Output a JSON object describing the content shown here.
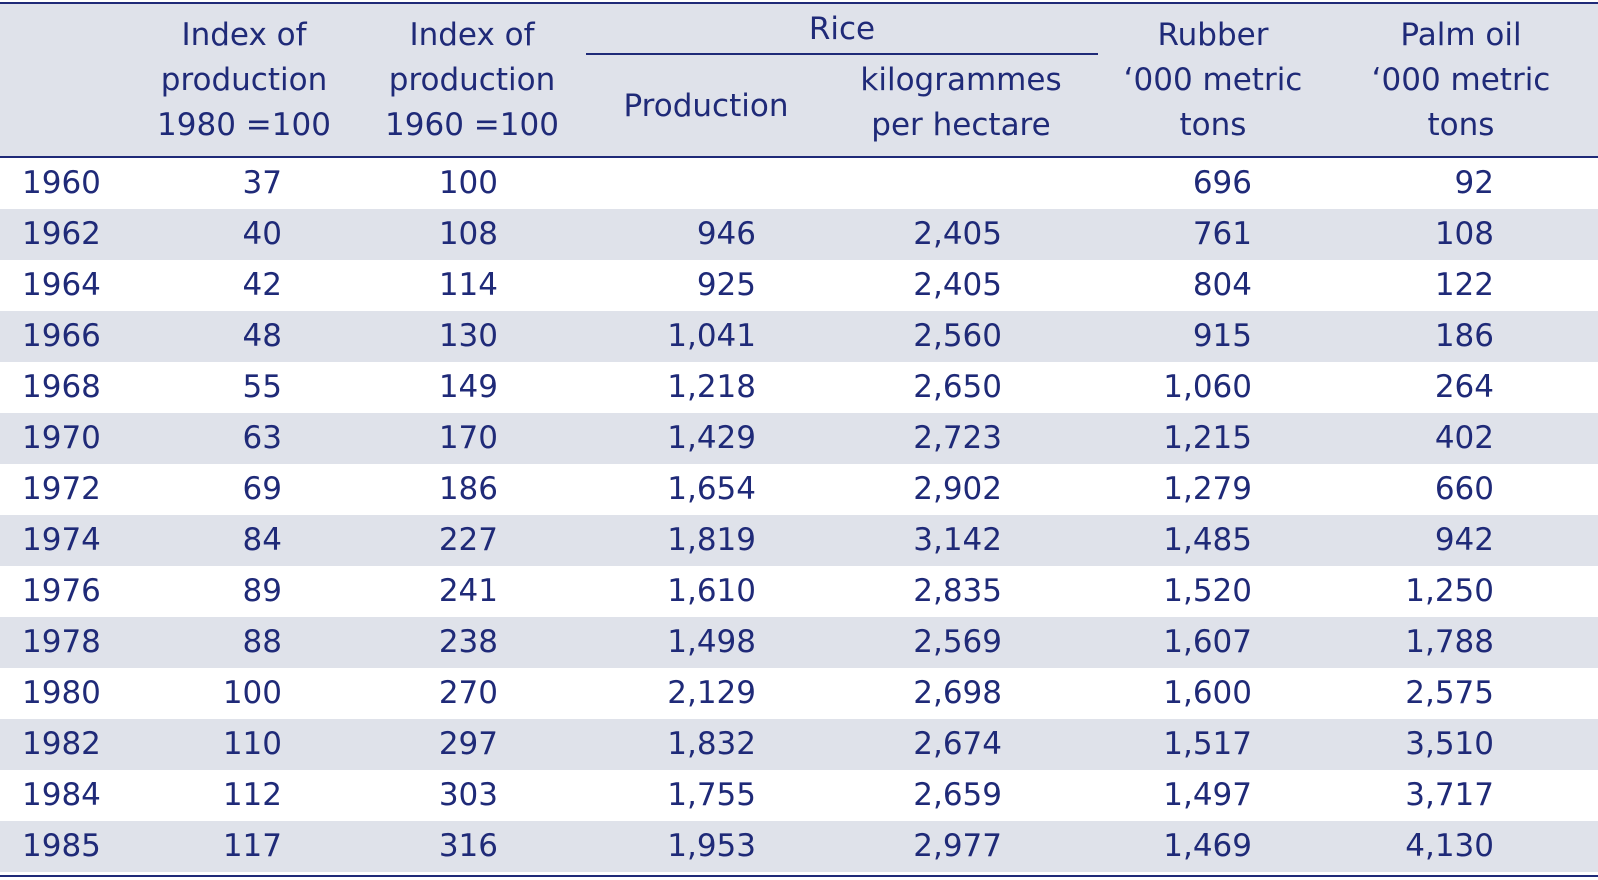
{
  "header": {
    "col1": [
      "Index of",
      "production",
      "1980 =100"
    ],
    "col2": [
      "Index of",
      "production",
      "1960 =100"
    ],
    "rice_group": "Rice",
    "rice_production": "Production",
    "rice_yield": [
      "kilogrammes",
      "per hectare"
    ],
    "rubber": [
      "Rubber",
      "‘000 metric",
      "tons"
    ],
    "palm_oil": [
      "Palm oil",
      "‘000 metric",
      "tons"
    ]
  },
  "rows": [
    {
      "year": "1960",
      "idx1980": "37",
      "idx1960": "100",
      "rice_prod": "",
      "rice_yield": "",
      "rubber": "696",
      "palm_oil": "92"
    },
    {
      "year": "1962",
      "idx1980": "40",
      "idx1960": "108",
      "rice_prod": "946",
      "rice_yield": "2,405",
      "rubber": "761",
      "palm_oil": "108"
    },
    {
      "year": "1964",
      "idx1980": "42",
      "idx1960": "114",
      "rice_prod": "925",
      "rice_yield": "2,405",
      "rubber": "804",
      "palm_oil": "122"
    },
    {
      "year": "1966",
      "idx1980": "48",
      "idx1960": "130",
      "rice_prod": "1,041",
      "rice_yield": "2,560",
      "rubber": "915",
      "palm_oil": "186"
    },
    {
      "year": "1968",
      "idx1980": "55",
      "idx1960": "149",
      "rice_prod": "1,218",
      "rice_yield": "2,650",
      "rubber": "1,060",
      "palm_oil": "264"
    },
    {
      "year": "1970",
      "idx1980": "63",
      "idx1960": "170",
      "rice_prod": "1,429",
      "rice_yield": "2,723",
      "rubber": "1,215",
      "palm_oil": "402"
    },
    {
      "year": "1972",
      "idx1980": "69",
      "idx1960": "186",
      "rice_prod": "1,654",
      "rice_yield": "2,902",
      "rubber": "1,279",
      "palm_oil": "660"
    },
    {
      "year": "1974",
      "idx1980": "84",
      "idx1960": "227",
      "rice_prod": "1,819",
      "rice_yield": "3,142",
      "rubber": "1,485",
      "palm_oil": "942"
    },
    {
      "year": "1976",
      "idx1980": "89",
      "idx1960": "241",
      "rice_prod": "1,610",
      "rice_yield": "2,835",
      "rubber": "1,520",
      "palm_oil": "1,250"
    },
    {
      "year": "1978",
      "idx1980": "88",
      "idx1960": "238",
      "rice_prod": "1,498",
      "rice_yield": "2,569",
      "rubber": "1,607",
      "palm_oil": "1,788"
    },
    {
      "year": "1980",
      "idx1980": "100",
      "idx1960": "270",
      "rice_prod": "2,129",
      "rice_yield": "2,698",
      "rubber": "1,600",
      "palm_oil": "2,575"
    },
    {
      "year": "1982",
      "idx1980": "110",
      "idx1960": "297",
      "rice_prod": "1,832",
      "rice_yield": "2,674",
      "rubber": "1,517",
      "palm_oil": "3,510"
    },
    {
      "year": "1984",
      "idx1980": "112",
      "idx1960": "303",
      "rice_prod": "1,755",
      "rice_yield": "2,659",
      "rubber": "1,497",
      "palm_oil": "3,717"
    },
    {
      "year": "1985",
      "idx1980": "117",
      "idx1960": "316",
      "rice_prod": "1,953",
      "rice_yield": "2,977",
      "rubber": "1,469",
      "palm_oil": "4,130"
    }
  ],
  "colors": {
    "text": "#1f2a78",
    "band": "#dfe2ea"
  }
}
